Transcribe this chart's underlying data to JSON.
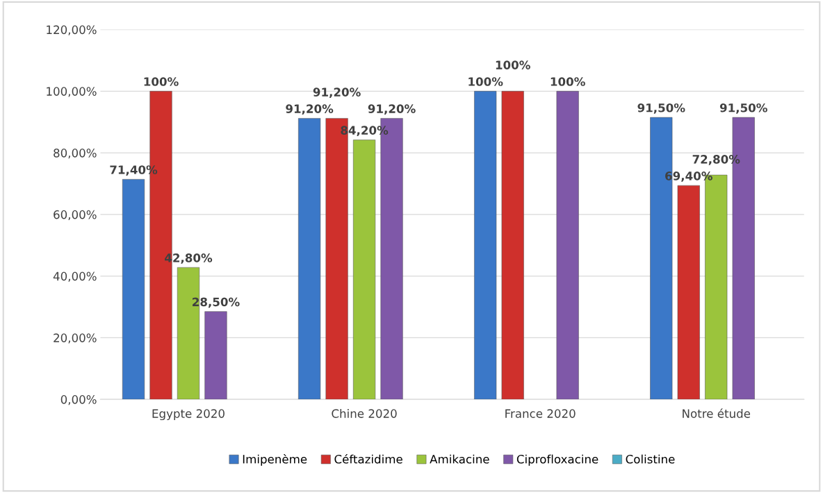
{
  "chart_data": {
    "type": "bar",
    "categories": [
      "Egypte 2020",
      "Chine 2020",
      "France 2020",
      "Notre étude"
    ],
    "series": [
      {
        "name": "Imipenème",
        "color": "#3b78c8",
        "values": [
          71.4,
          91.2,
          100,
          91.5
        ],
        "value_labels": [
          "71,40%",
          "91,20%",
          "100%",
          "91,50%"
        ]
      },
      {
        "name": "Céftazidime",
        "color": "#cf302c",
        "values": [
          100,
          91.2,
          100,
          69.4
        ],
        "value_labels": [
          "100%",
          "91,20%",
          "100%",
          "69,40%"
        ]
      },
      {
        "name": "Amikacine",
        "color": "#9bc43c",
        "values": [
          42.8,
          84.2,
          null,
          72.8
        ],
        "value_labels": [
          "42,80%",
          "84,20%",
          null,
          "72,80%"
        ]
      },
      {
        "name": "Ciprofloxacine",
        "color": "#7f58a8",
        "values": [
          28.5,
          91.2,
          100,
          91.5
        ],
        "value_labels": [
          "28,50%",
          "91,20%",
          "100%",
          "91,50%"
        ]
      },
      {
        "name": "Colistine",
        "color": "#4bacc6",
        "values": [
          null,
          null,
          null,
          null
        ],
        "value_labels": [
          null,
          null,
          null,
          null
        ]
      }
    ],
    "ylim": [
      0,
      120
    ],
    "yticks": [
      {
        "value": 0,
        "label": "0,00%"
      },
      {
        "value": 20,
        "label": "20,00%"
      },
      {
        "value": 40,
        "label": "40,00%"
      },
      {
        "value": 60,
        "label": "60,00%"
      },
      {
        "value": 80,
        "label": "80,00%"
      },
      {
        "value": 100,
        "label": "100,00%"
      },
      {
        "value": 120,
        "label": "120,00%"
      }
    ],
    "grid": "y",
    "legend": "bottom"
  }
}
